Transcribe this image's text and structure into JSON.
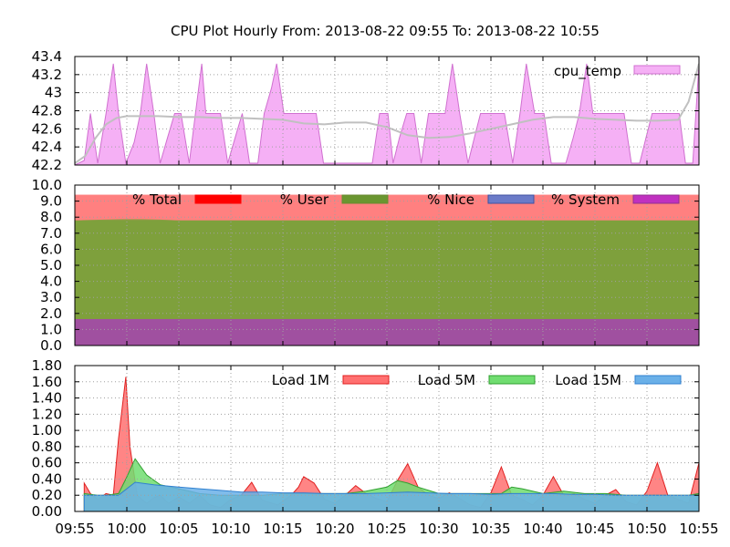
{
  "title": "CPU Plot Hourly From: 2013-08-22 09:55 To: 2013-08-22 10:55",
  "x_ticks": [
    "09:55",
    "10:00",
    "10:05",
    "10:10",
    "10:15",
    "10:20",
    "10:25",
    "10:30",
    "10:35",
    "10:40",
    "10:45",
    "10:50",
    "10:55"
  ],
  "chart_data": [
    {
      "type": "area",
      "name": "temperature",
      "ylim": [
        42.2,
        43.4
      ],
      "y_ticks": [
        "43.4",
        "43.2",
        "43",
        "42.8",
        "42.6",
        "42.4",
        "42.2"
      ],
      "grid": true,
      "legend_position": "top-right",
      "series": [
        {
          "name": "cpu_temp",
          "fill": "#f5b0f5",
          "stroke": "#d070d0",
          "x": [
            0,
            0.9,
            1.5,
            2.2,
            3,
            3.7,
            4.2,
            4.9,
            5.7,
            6.3,
            6.9,
            7.6,
            8.2,
            8.9,
            9.6,
            10.2,
            11,
            11.6,
            12.2,
            12.6,
            13.4,
            14,
            14.7,
            15.4,
            16.1,
            16.8,
            17.6,
            18.2,
            18.9,
            19.4,
            20.1,
            20.8,
            21.5,
            22,
            22.6,
            23.2,
            23.9,
            24.6,
            25.2,
            25.7,
            26.4,
            27.1,
            27.8,
            28.6,
            29.3,
            30.1,
            30.6,
            31.2,
            31.9,
            32.6,
            33.3,
            34,
            34.8,
            35.6,
            36.3,
            37,
            37.8,
            38.4,
            39,
            39.8,
            40.6,
            41.3,
            42.1,
            42.8,
            43.4,
            44.2,
            45.1,
            45.8,
            46.4,
            47.2,
            47.9,
            48.5,
            49.2,
            49.8,
            50.5,
            51.2,
            52.1,
            52.8,
            53.5,
            54.3,
            54.9,
            55.5,
            56.2,
            56.9,
            57.4,
            58.1,
            58.7,
            59.4,
            60
          ],
          "values": [
            42.2,
            42.25,
            42.77,
            42.22,
            42.77,
            43.32,
            42.77,
            42.22,
            42.45,
            42.77,
            43.32,
            42.77,
            42.22,
            42.5,
            42.77,
            42.77,
            42.22,
            42.77,
            43.32,
            42.77,
            42.77,
            42.77,
            42.22,
            42.5,
            42.77,
            42.22,
            42.22,
            42.77,
            43.05,
            43.32,
            42.77,
            42.77,
            42.77,
            42.77,
            42.77,
            42.77,
            42.22,
            42.22,
            42.22,
            42.22,
            42.22,
            42.22,
            42.22,
            42.22,
            42.77,
            42.77,
            42.22,
            42.5,
            42.77,
            42.77,
            42.22,
            42.77,
            42.77,
            42.77,
            43.32,
            42.77,
            42.22,
            42.5,
            42.77,
            42.77,
            42.77,
            42.77,
            42.22,
            42.77,
            43.32,
            42.77,
            42.77,
            42.22,
            42.22,
            42.22,
            42.5,
            42.77,
            43.32,
            42.77,
            42.77,
            42.77,
            42.77,
            42.77,
            42.22,
            42.22,
            42.5,
            42.77,
            42.77,
            42.77,
            42.77,
            42.77,
            42.22,
            42.22,
            43.32
          ]
        }
      ],
      "trend": {
        "stroke": "#c0c0c0",
        "x": [
          0,
          1,
          2,
          3,
          4,
          5,
          6,
          8,
          10,
          12,
          14,
          16,
          18,
          20,
          22,
          24,
          26,
          28,
          30,
          32,
          34,
          36,
          38,
          40,
          42,
          44,
          46,
          48,
          50,
          52,
          54,
          56,
          58,
          59,
          60
        ],
        "values": [
          42.22,
          42.3,
          42.5,
          42.65,
          42.72,
          42.74,
          42.74,
          42.74,
          42.73,
          42.73,
          42.72,
          42.72,
          42.71,
          42.7,
          42.66,
          42.65,
          42.67,
          42.67,
          42.62,
          42.53,
          42.5,
          42.51,
          42.55,
          42.6,
          42.65,
          42.7,
          42.73,
          42.73,
          42.71,
          42.7,
          42.69,
          42.69,
          42.7,
          42.9,
          43.32
        ]
      }
    },
    {
      "type": "area",
      "name": "cpu-usage",
      "ylim": [
        0,
        10
      ],
      "y_ticks": [
        "10.0",
        "9.0",
        "8.0",
        "7.0",
        "6.0",
        "5.0",
        "4.0",
        "3.0",
        "2.0",
        "1.0",
        "0.0"
      ],
      "grid": true,
      "legend_position": "top",
      "series": [
        {
          "name": "% Total",
          "fill": "#ff8080",
          "stroke": "#ff0000",
          "legend_color": "#ff0000",
          "value": 9.4
        },
        {
          "name": "% User",
          "fill": "#7ea03c",
          "stroke": "#6a8a30",
          "legend_color": "#6a9630",
          "value": 7.8
        },
        {
          "name": "% Nice",
          "fill": "#6070c0",
          "stroke": "#4050a0",
          "legend_color": "#6b7bc8",
          "value": 0
        },
        {
          "name": "% System",
          "fill": "#a050a0",
          "stroke": "#903090",
          "legend_color": "#c030c0",
          "value": 1.65
        }
      ]
    },
    {
      "type": "area",
      "name": "load",
      "ylim": [
        0,
        1.8
      ],
      "y_ticks": [
        "1.80",
        "1.60",
        "1.40",
        "1.20",
        "1.00",
        "0.80",
        "0.60",
        "0.40",
        "0.20",
        "0.00"
      ],
      "grid": true,
      "legend_position": "top",
      "series": [
        {
          "name": "Load 1M",
          "fill": "#ff7070",
          "stroke": "#e02020",
          "x": [
            0.9,
            1.5,
            2.2,
            3,
            3.7,
            4.2,
            4.9,
            5.3,
            6,
            6.9,
            7.6,
            8.2,
            9,
            10,
            11,
            12,
            13,
            14,
            15,
            16,
            17,
            18,
            19.5,
            20.8,
            21.5,
            22,
            23,
            24,
            25,
            26,
            27,
            28,
            29,
            30,
            31,
            32,
            33,
            34,
            35,
            36,
            37,
            38,
            39,
            40,
            41,
            42,
            43,
            44,
            45,
            46,
            47,
            48,
            49,
            50,
            51,
            52,
            53,
            54,
            55,
            56,
            57,
            58,
            59,
            60
          ],
          "values": [
            0.35,
            0.22,
            0.15,
            0.22,
            0.2,
            0.9,
            1.66,
            0.8,
            0.2,
            0.1,
            0.17,
            0.2,
            0.1,
            0.18,
            0.1,
            0.2,
            0.08,
            0.05,
            0.15,
            0.2,
            0.36,
            0.14,
            0.08,
            0.2,
            0.3,
            0.43,
            0.35,
            0.15,
            0.1,
            0.2,
            0.32,
            0.22,
            0.16,
            0.12,
            0.38,
            0.59,
            0.3,
            0.2,
            0.16,
            0.23,
            0.16,
            0.08,
            0.05,
            0.23,
            0.55,
            0.2,
            0.15,
            0.08,
            0.2,
            0.43,
            0.2,
            0.22,
            0.15,
            0.1,
            0.2,
            0.27,
            0.12,
            0.08,
            0.25,
            0.6,
            0.2,
            0.15,
            0.1,
            0.6
          ]
        },
        {
          "name": "Load 5M",
          "fill": "#70dd70",
          "stroke": "#30a030",
          "x": [
            0.9,
            2.2,
            3,
            4.2,
            4.9,
            5.8,
            6.9,
            8.2,
            10,
            12,
            14,
            16,
            18,
            20,
            22,
            24,
            26,
            28,
            30,
            31,
            32,
            33,
            35,
            37,
            39,
            41,
            42,
            43,
            45,
            47,
            49,
            51,
            53,
            55,
            57,
            59,
            60
          ],
          "values": [
            0.22,
            0.2,
            0.2,
            0.22,
            0.4,
            0.65,
            0.45,
            0.33,
            0.28,
            0.22,
            0.2,
            0.2,
            0.2,
            0.22,
            0.22,
            0.22,
            0.22,
            0.25,
            0.3,
            0.38,
            0.35,
            0.3,
            0.22,
            0.22,
            0.22,
            0.22,
            0.3,
            0.28,
            0.22,
            0.25,
            0.22,
            0.22,
            0.2,
            0.2,
            0.2,
            0.2,
            0.22
          ]
        },
        {
          "name": "Load 15M",
          "fill": "#6ab0e8",
          "stroke": "#3080d0",
          "x": [
            0.9,
            2.2,
            4.2,
            5.8,
            7.6,
            10,
            12,
            14,
            16,
            18,
            20,
            22,
            24,
            26,
            28,
            30,
            32,
            34,
            36,
            38,
            40,
            42,
            44,
            46,
            48,
            50,
            52,
            54,
            56,
            58,
            60
          ],
          "values": [
            0.2,
            0.2,
            0.2,
            0.36,
            0.33,
            0.3,
            0.28,
            0.26,
            0.24,
            0.24,
            0.23,
            0.23,
            0.22,
            0.22,
            0.22,
            0.23,
            0.24,
            0.23,
            0.22,
            0.22,
            0.21,
            0.22,
            0.22,
            0.22,
            0.21,
            0.21,
            0.2,
            0.2,
            0.2,
            0.2,
            0.2
          ]
        }
      ]
    }
  ]
}
